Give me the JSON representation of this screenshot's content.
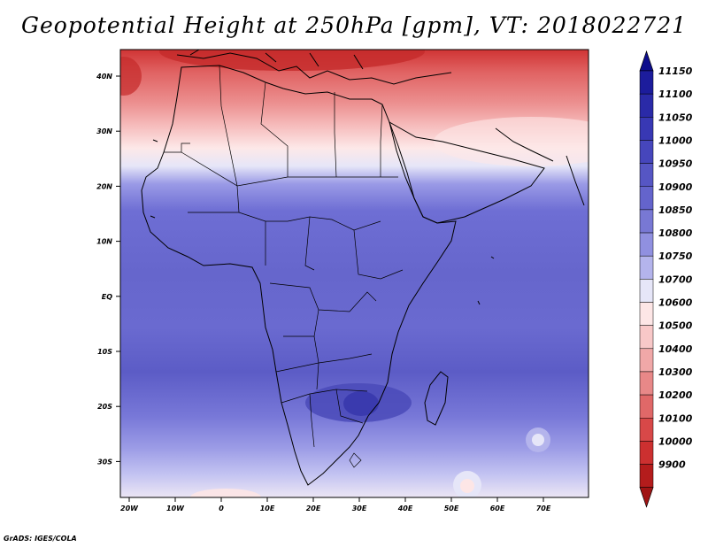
{
  "title": "Geopotential Height at 250hPa [gpm], VT: 2018022721",
  "credit": "GrADS: IGES/COLA",
  "map": {
    "region": "Africa",
    "lon_range": [
      -22,
      80
    ],
    "lat_range": [
      -37,
      45
    ],
    "lat_ticks": [
      "40N",
      "30N",
      "20N",
      "10N",
      "EQ",
      "10S",
      "20S",
      "30S"
    ],
    "lon_ticks": [
      "20W",
      "10W",
      "0",
      "10E",
      "20E",
      "30E",
      "40E",
      "50E",
      "60E",
      "70E"
    ]
  },
  "colorbar": {
    "labels": [
      "11150",
      "11100",
      "11050",
      "11000",
      "10950",
      "10900",
      "10850",
      "10800",
      "10750",
      "10700",
      "10600",
      "10500",
      "10400",
      "10300",
      "10200",
      "10100",
      "10000",
      "9900"
    ],
    "colors": [
      "#1c1c9c",
      "#2a2aa8",
      "#3838b4",
      "#4646bc",
      "#5656c4",
      "#6464cc",
      "#7878d4",
      "#9090e0",
      "#b4b4ec",
      "#e6e6f8",
      "#fde6e6",
      "#f8c8c8",
      "#f0a8a8",
      "#e88888",
      "#e06868",
      "#d84848",
      "#cc3030",
      "#b41c1c"
    ],
    "top_arrow_color": "#0c0c8c",
    "bottom_arrow_color": "#a01414"
  }
}
